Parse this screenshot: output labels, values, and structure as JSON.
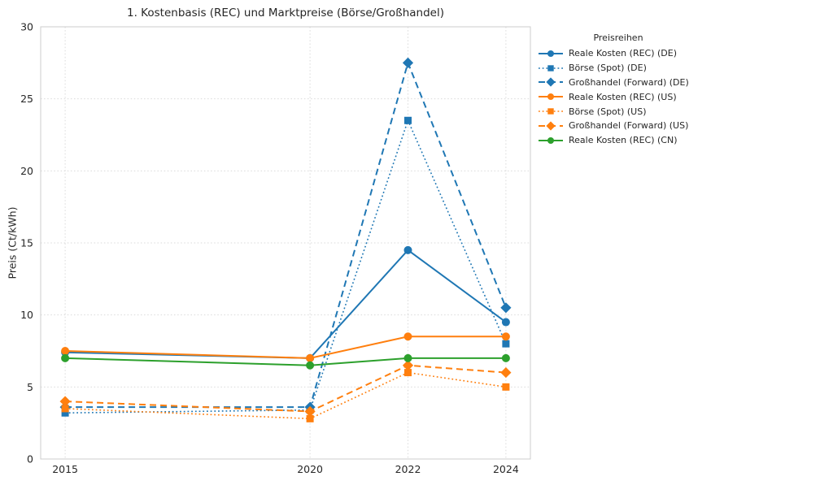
{
  "chart_data": {
    "type": "line",
    "title": "1. Kostenbasis (REC) und Marktpreise (Börse/Großhandel)",
    "xlabel": "",
    "ylabel": "Preis (Ct/kWh)",
    "legend_title": "Preisreihen",
    "legend_position": "right-top",
    "grid": true,
    "x": [
      2015,
      2020,
      2022,
      2024
    ],
    "xtick_labels": [
      "2015",
      "2020",
      "2022",
      "2024"
    ],
    "yticks": [
      0,
      5,
      10,
      15,
      20,
      25,
      30
    ],
    "ytick_labels": [
      "0",
      "5",
      "10",
      "15",
      "20",
      "25",
      "30"
    ],
    "xlim": [
      2014.5,
      2024.5
    ],
    "ylim": [
      0,
      30
    ],
    "series": [
      {
        "name": "Reale Kosten (REC) (DE)",
        "color": "#1f77b4",
        "style": "solid",
        "marker": "circle",
        "values": [
          7.4,
          7.0,
          14.5,
          9.5
        ]
      },
      {
        "name": "Börse (Spot) (DE)",
        "color": "#1f77b4",
        "style": "dotted",
        "marker": "square",
        "values": [
          3.2,
          3.4,
          23.5,
          8.0
        ]
      },
      {
        "name": "Großhandel (Forward) (DE)",
        "color": "#1f77b4",
        "style": "dashed",
        "marker": "diamond",
        "values": [
          3.6,
          3.6,
          27.5,
          10.5
        ]
      },
      {
        "name": "Reale Kosten (REC) (US)",
        "color": "#ff7f0e",
        "style": "solid",
        "marker": "circle",
        "values": [
          7.5,
          7.0,
          8.5,
          8.5
        ]
      },
      {
        "name": "Börse (Spot) (US)",
        "color": "#ff7f0e",
        "style": "dotted",
        "marker": "square",
        "values": [
          3.5,
          2.8,
          6.0,
          5.0
        ]
      },
      {
        "name": "Großhandel (Forward) (US)",
        "color": "#ff7f0e",
        "style": "dashed",
        "marker": "diamond",
        "values": [
          4.0,
          3.3,
          6.5,
          6.0
        ]
      },
      {
        "name": "Reale Kosten (REC) (CN)",
        "color": "#2ca02c",
        "style": "solid",
        "marker": "circle",
        "values": [
          7.0,
          6.5,
          7.0,
          7.0
        ]
      }
    ]
  }
}
